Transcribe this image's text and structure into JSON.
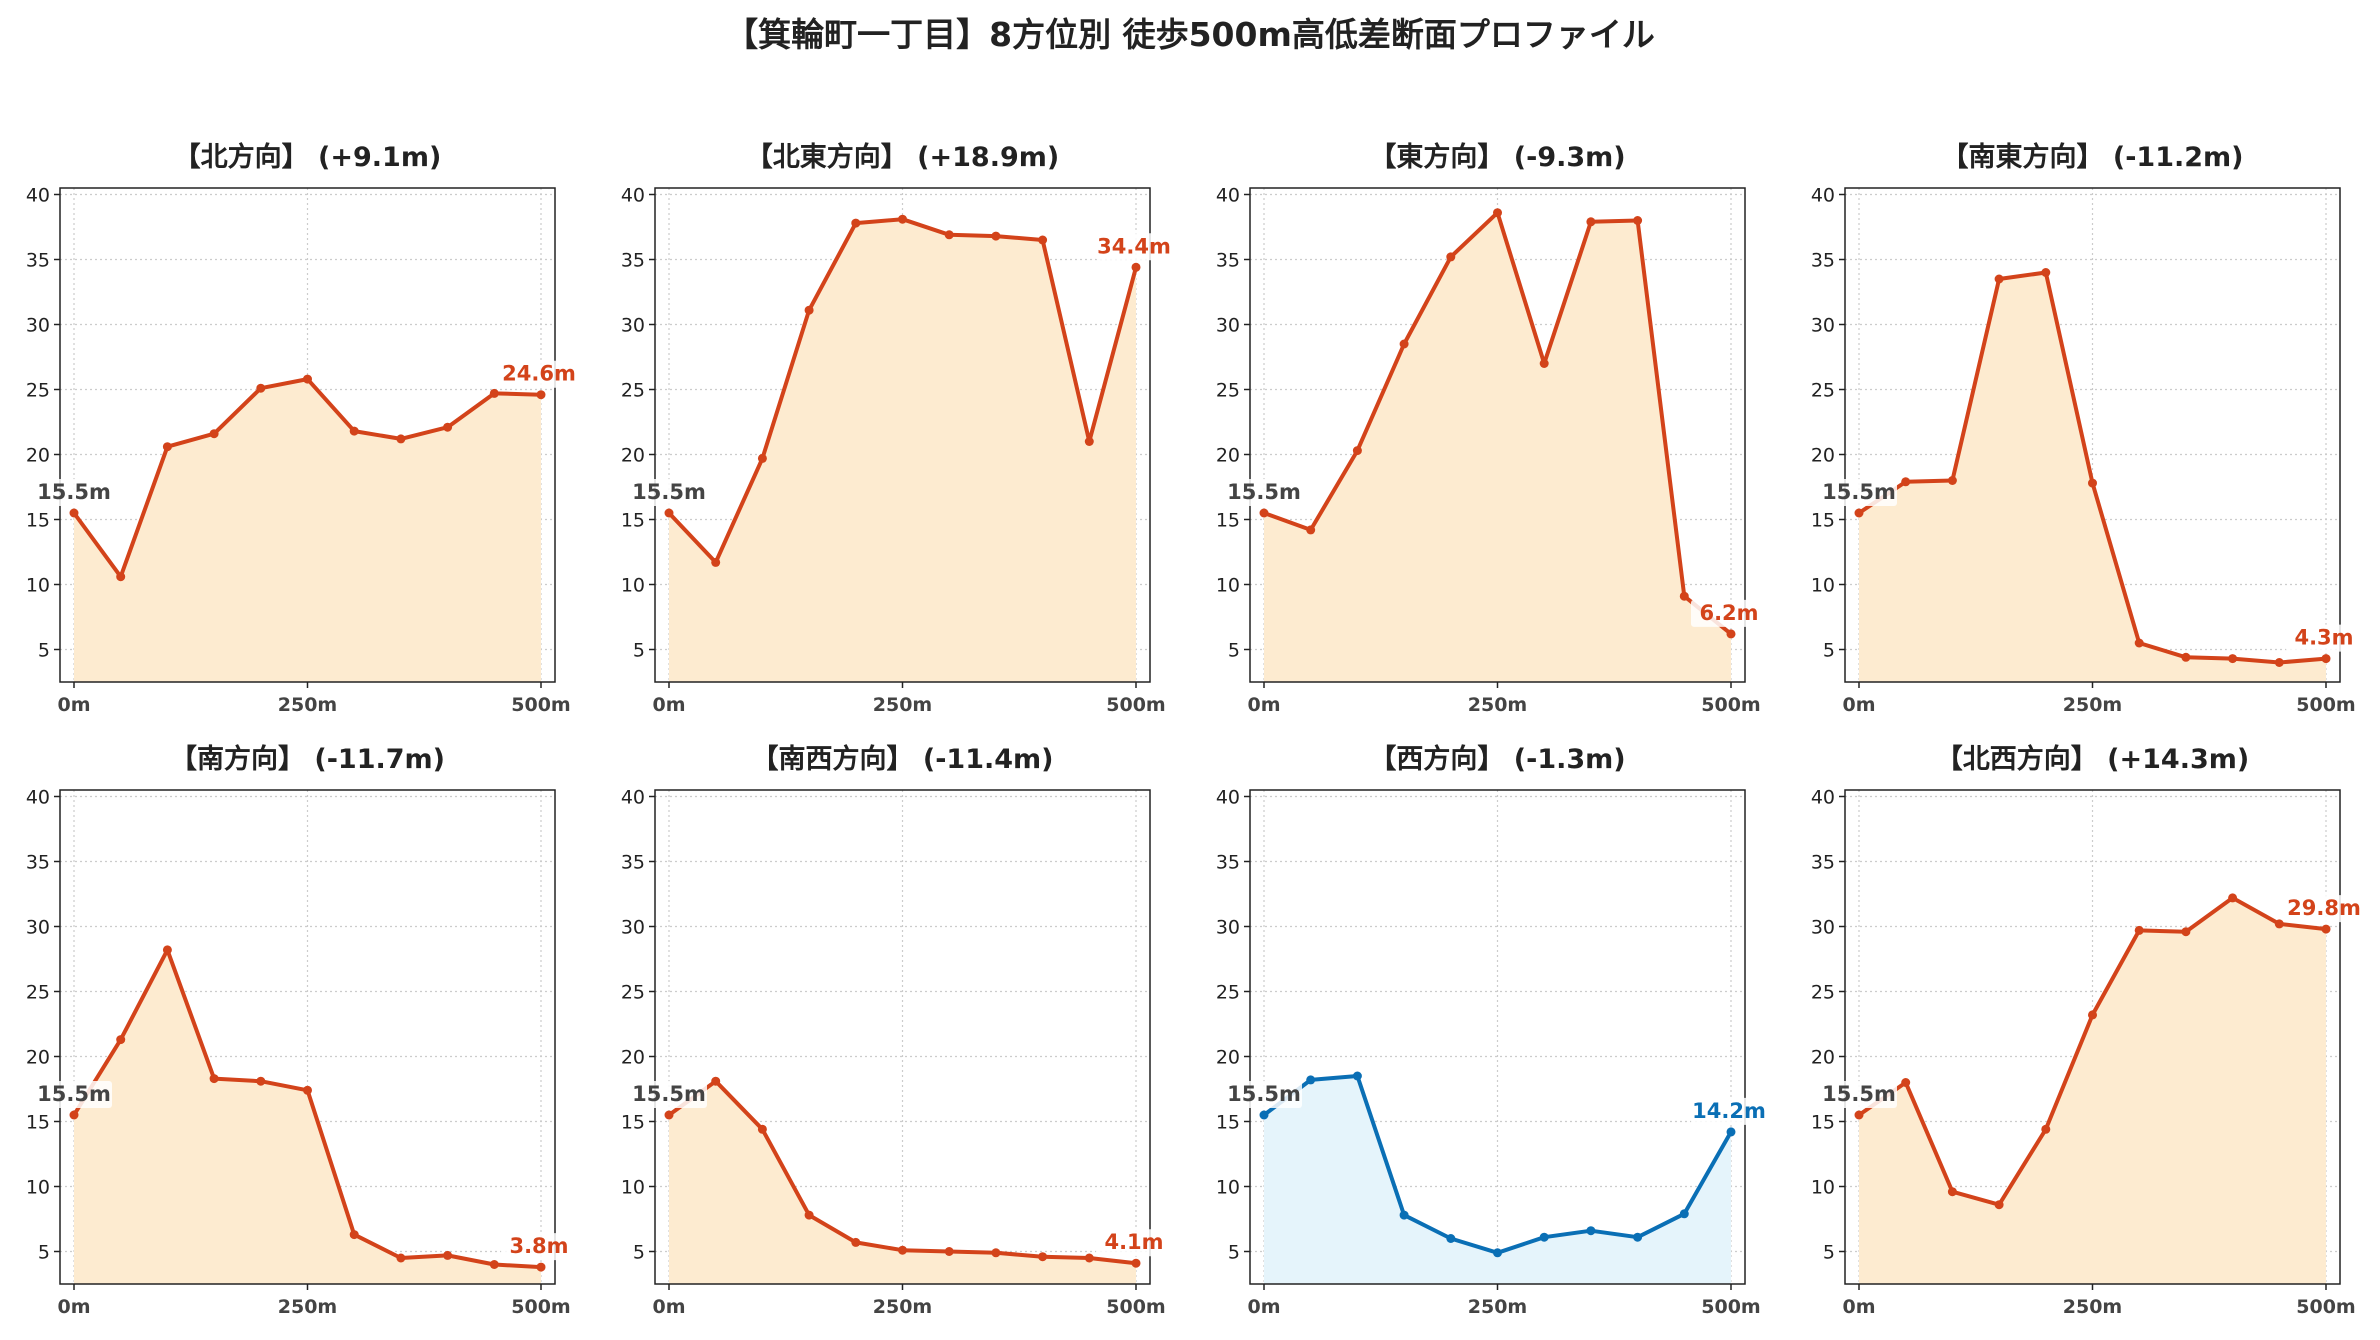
{
  "title": "【箕輪町一丁目】8方位別 徒歩500m高低差断面プロファイル",
  "chart_data": [
    {
      "type": "line",
      "title": "【北方向】 (+9.1m)",
      "x": [
        0,
        50,
        100,
        150,
        200,
        250,
        300,
        350,
        400,
        450,
        500
      ],
      "xticks": [
        "0m",
        "250m",
        "500m"
      ],
      "yticks": [
        "5",
        "10",
        "15",
        "20",
        "25",
        "30",
        "35",
        "40"
      ],
      "ylim": [
        2.5,
        40.5
      ],
      "values": [
        15.5,
        10.6,
        20.6,
        21.6,
        25.1,
        25.8,
        21.8,
        21.2,
        22.1,
        24.7,
        24.6
      ],
      "start_label": "15.5m",
      "end_label": "24.6m",
      "line_color": "#d3431a",
      "fill_color": "#fdebd0"
    },
    {
      "type": "line",
      "title": "【北東方向】 (+18.9m)",
      "x": [
        0,
        50,
        100,
        150,
        200,
        250,
        300,
        350,
        400,
        450,
        500
      ],
      "xticks": [
        "0m",
        "250m",
        "500m"
      ],
      "yticks": [
        "5",
        "10",
        "15",
        "20",
        "25",
        "30",
        "35",
        "40"
      ],
      "ylim": [
        2.5,
        40.5
      ],
      "values": [
        15.5,
        11.7,
        19.7,
        31.1,
        37.8,
        38.1,
        36.9,
        36.8,
        36.5,
        21.0,
        34.4
      ],
      "start_label": "15.5m",
      "end_label": "34.4m",
      "line_color": "#d3431a",
      "fill_color": "#fdebd0"
    },
    {
      "type": "line",
      "title": "【東方向】 (-9.3m)",
      "x": [
        0,
        50,
        100,
        150,
        200,
        250,
        300,
        350,
        400,
        450,
        500
      ],
      "xticks": [
        "0m",
        "250m",
        "500m"
      ],
      "yticks": [
        "5",
        "10",
        "15",
        "20",
        "25",
        "30",
        "35",
        "40"
      ],
      "ylim": [
        2.5,
        40.5
      ],
      "values": [
        15.5,
        14.2,
        20.3,
        28.5,
        35.2,
        38.6,
        27.0,
        37.9,
        38.0,
        9.1,
        6.2
      ],
      "start_label": "15.5m",
      "end_label": "6.2m",
      "line_color": "#d3431a",
      "fill_color": "#fdebd0"
    },
    {
      "type": "line",
      "title": "【南東方向】 (-11.2m)",
      "x": [
        0,
        50,
        100,
        150,
        200,
        250,
        300,
        350,
        400,
        450,
        500
      ],
      "xticks": [
        "0m",
        "250m",
        "500m"
      ],
      "yticks": [
        "5",
        "10",
        "15",
        "20",
        "25",
        "30",
        "35",
        "40"
      ],
      "ylim": [
        2.5,
        40.5
      ],
      "values": [
        15.5,
        17.9,
        18.0,
        33.5,
        34.0,
        17.8,
        5.5,
        4.4,
        4.3,
        4.0,
        4.3
      ],
      "start_label": "15.5m",
      "end_label": "4.3m",
      "line_color": "#d3431a",
      "fill_color": "#fdebd0"
    },
    {
      "type": "line",
      "title": "【南方向】 (-11.7m)",
      "x": [
        0,
        50,
        100,
        150,
        200,
        250,
        300,
        350,
        400,
        450,
        500
      ],
      "xticks": [
        "0m",
        "250m",
        "500m"
      ],
      "yticks": [
        "5",
        "10",
        "15",
        "20",
        "25",
        "30",
        "35",
        "40"
      ],
      "ylim": [
        2.5,
        40.5
      ],
      "values": [
        15.5,
        21.3,
        28.2,
        18.3,
        18.1,
        17.4,
        6.3,
        4.5,
        4.7,
        4.0,
        3.8
      ],
      "start_label": "15.5m",
      "end_label": "3.8m",
      "line_color": "#d3431a",
      "fill_color": "#fdebd0"
    },
    {
      "type": "line",
      "title": "【南西方向】 (-11.4m)",
      "x": [
        0,
        50,
        100,
        150,
        200,
        250,
        300,
        350,
        400,
        450,
        500
      ],
      "xticks": [
        "0m",
        "250m",
        "500m"
      ],
      "yticks": [
        "5",
        "10",
        "15",
        "20",
        "25",
        "30",
        "35",
        "40"
      ],
      "ylim": [
        2.5,
        40.5
      ],
      "values": [
        15.5,
        18.1,
        14.4,
        7.8,
        5.7,
        5.1,
        5.0,
        4.9,
        4.6,
        4.5,
        4.1
      ],
      "start_label": "15.5m",
      "end_label": "4.1m",
      "line_color": "#d3431a",
      "fill_color": "#fdebd0"
    },
    {
      "type": "line",
      "title": "【西方向】 (-1.3m)",
      "x": [
        0,
        50,
        100,
        150,
        200,
        250,
        300,
        350,
        400,
        450,
        500
      ],
      "xticks": [
        "0m",
        "250m",
        "500m"
      ],
      "yticks": [
        "5",
        "10",
        "15",
        "20",
        "25",
        "30",
        "35",
        "40"
      ],
      "ylim": [
        2.5,
        40.5
      ],
      "values": [
        15.5,
        18.2,
        18.5,
        7.8,
        6.0,
        4.9,
        6.1,
        6.6,
        6.1,
        7.9,
        14.2
      ],
      "start_label": "15.5m",
      "end_label": "14.2m",
      "line_color": "#0a6fb5",
      "fill_color": "#e5f4fb"
    },
    {
      "type": "line",
      "title": "【北西方向】 (+14.3m)",
      "x": [
        0,
        50,
        100,
        150,
        200,
        250,
        300,
        350,
        400,
        450,
        500
      ],
      "xticks": [
        "0m",
        "250m",
        "500m"
      ],
      "yticks": [
        "5",
        "10",
        "15",
        "20",
        "25",
        "30",
        "35",
        "40"
      ],
      "ylim": [
        2.5,
        40.5
      ],
      "values": [
        15.5,
        18.0,
        9.6,
        8.6,
        14.4,
        23.2,
        29.7,
        29.6,
        32.2,
        30.2,
        29.8
      ],
      "start_label": "15.5m",
      "end_label": "29.8m",
      "line_color": "#d3431a",
      "fill_color": "#fdebd0"
    }
  ]
}
